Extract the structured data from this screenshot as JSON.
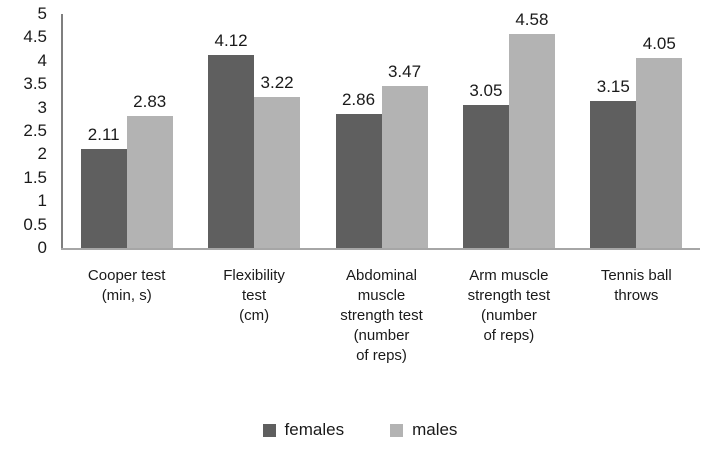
{
  "chart_data": {
    "type": "bar",
    "title": "",
    "xlabel": "",
    "ylabel": "",
    "categories": [
      "Cooper test\n(min, s)",
      "Flexibility\ntest\n(cm)",
      "Abdominal\nmuscle\nstrength test\n(number\nof reps)",
      "Arm muscle\nstrength test\n(number\nof reps)",
      "Tennis ball\nthrows"
    ],
    "series": [
      {
        "name": "females",
        "color": "#5f5f5f",
        "values": [
          2.11,
          4.12,
          2.86,
          3.05,
          3.15
        ]
      },
      {
        "name": "males",
        "color": "#b3b3b3",
        "values": [
          2.83,
          3.22,
          3.47,
          4.58,
          4.05
        ]
      }
    ],
    "value_labels": [
      [
        "2.11",
        "4.12",
        "2.86",
        "3.05",
        "3.15"
      ],
      [
        "2.83",
        "3.22",
        "3.47",
        "4.58",
        "4.05"
      ]
    ],
    "ylim": [
      0,
      5
    ],
    "yticks": [
      "0",
      "0.5",
      "1",
      "1.5",
      "2",
      "2.5",
      "3",
      "3.5",
      "4",
      "4.5",
      "5"
    ],
    "grid": false,
    "legend_position": "bottom"
  },
  "legend": {
    "items": [
      {
        "label": "females",
        "color": "#5f5f5f"
      },
      {
        "label": "males",
        "color": "#b3b3b3"
      }
    ]
  },
  "axis_colors": {
    "y_axis_line": "#7f7f7f",
    "x_axis_line": "#a6a6a6"
  }
}
